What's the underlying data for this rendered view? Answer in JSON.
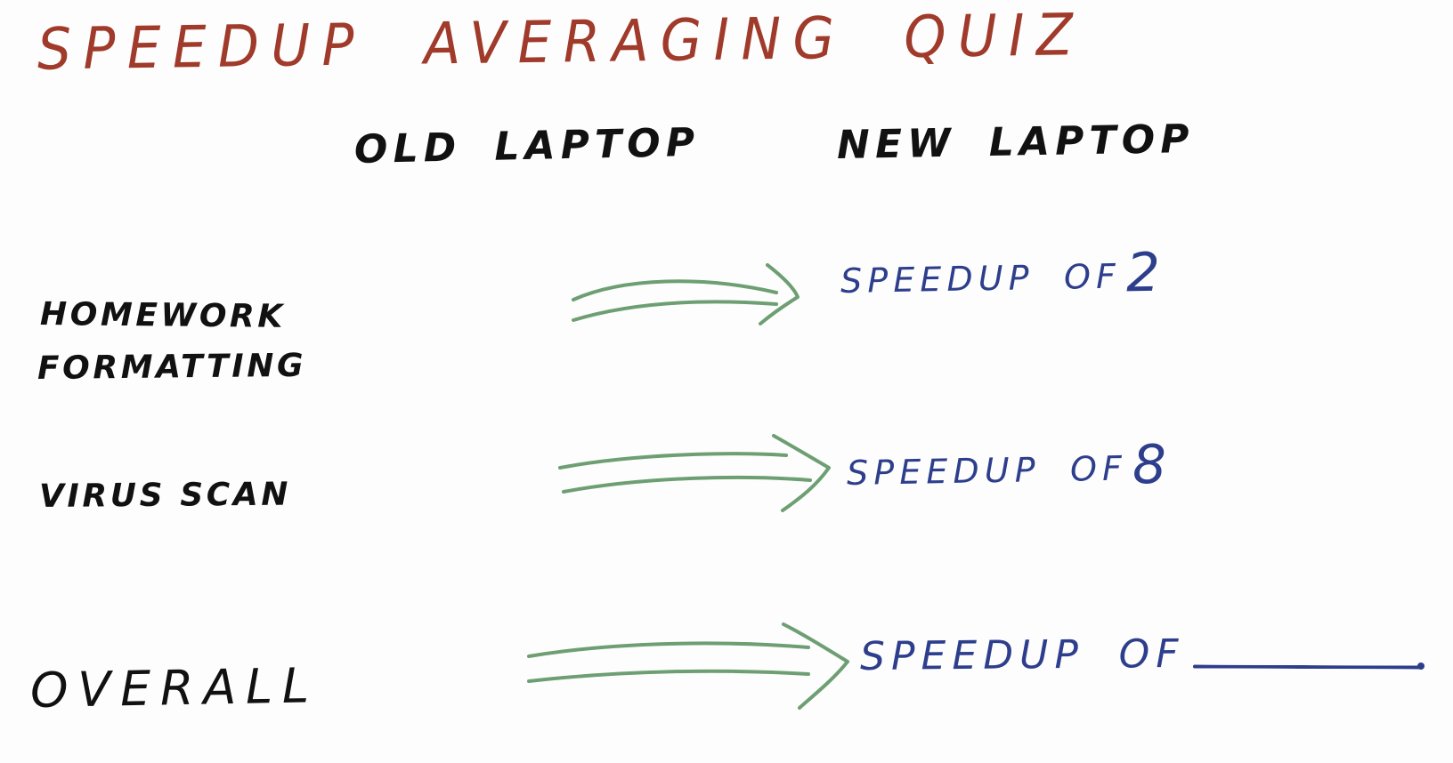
{
  "colors": {
    "background": "#ffffff",
    "title": "#a03a2a",
    "ink": "#111111",
    "result": "#2d3e8c",
    "arrow": "#6d9f73"
  },
  "title": "SPEEDUP AVERAGING QUIZ",
  "columns": {
    "old": "OLD LAPTOP",
    "new": "NEW LAPTOP"
  },
  "rows": [
    {
      "label_lines": [
        "HOMEWORK",
        "FORMATTING"
      ],
      "result_prefix": "SPEEDUP OF",
      "result_value": "2"
    },
    {
      "label_lines": [
        "VIRUS SCAN"
      ],
      "result_prefix": "SPEEDUP OF",
      "result_value": "8"
    },
    {
      "label_lines": [
        "OVERALL"
      ],
      "result_prefix": "SPEEDUP OF",
      "result_value": ""
    }
  ],
  "arrows": [
    {
      "name": "homework-arrow-icon"
    },
    {
      "name": "virus-scan-arrow-icon"
    },
    {
      "name": "overall-arrow-icon"
    }
  ]
}
